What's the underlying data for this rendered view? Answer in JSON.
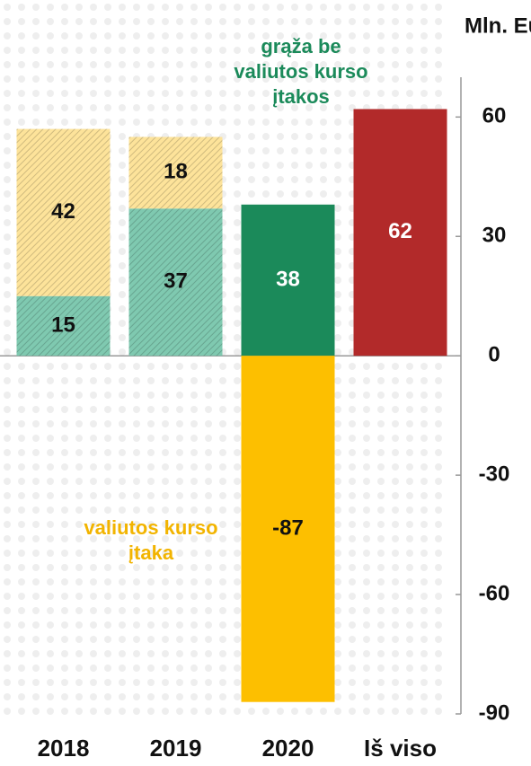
{
  "chart_data": {
    "type": "stacked-bar",
    "axis_label": "Mln. Eur",
    "categories": [
      "2018",
      "2019",
      "2020",
      "Iš viso"
    ],
    "series": [
      {
        "name": "grąža be\nvaliutos kurso\nįtakos",
        "color": "#1b8a5a",
        "values": [
          15,
          37,
          38,
          62
        ],
        "colors": [
          "#7fc9b0",
          "#7fc9b0",
          "#1b8a5a",
          "#b22a2a"
        ],
        "label_colors": [
          "#111111",
          "#111111",
          "#ffffff",
          "#ffffff"
        ]
      },
      {
        "name": "valiutos kurso\nįtaka",
        "color": "#f2b400",
        "values": [
          42,
          18,
          -87,
          null
        ],
        "colors": [
          "#fde39a",
          "#fde39a",
          "#fdbf00",
          "#fdbf00"
        ],
        "label_colors": [
          "#111111",
          "#111111",
          "#111111",
          "#111111"
        ]
      }
    ],
    "hatch": [
      true,
      true,
      false,
      false
    ],
    "ylim": [
      -90,
      70
    ],
    "yticks": [
      -90,
      -60,
      -30,
      0,
      30,
      60
    ]
  }
}
